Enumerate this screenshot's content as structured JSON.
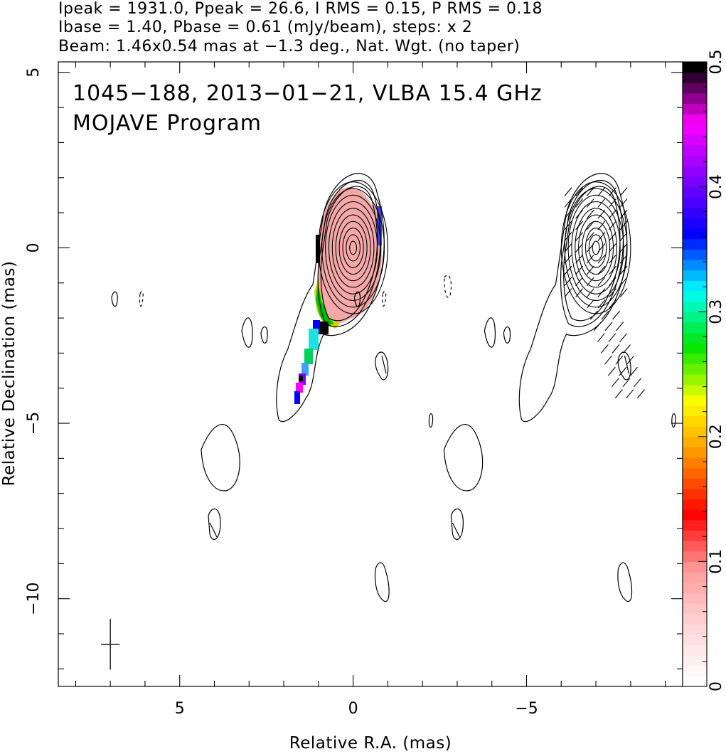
{
  "chart_data": {
    "type": "contour",
    "header_lines": [
      "Ipeak = 1931.0, Ppeak = 26.6, I RMS = 0.15, P RMS = 0.18",
      "Ibase = 1.40, Pbase = 0.61 (mJy/beam), steps: x 2",
      "Beam: 1.46x0.54 mas at −1.3 deg., Nat. Wgt. (no taper)"
    ],
    "annotations": [
      "1045−188, 2013−01−21, VLBA 15.4 GHz",
      "MOJAVE Program"
    ],
    "xlabel": "Relative R.A. (mas)",
    "ylabel": "Relative Declination (mas)",
    "xlim": [
      8.5,
      -9.5
    ],
    "ylim": [
      -12.5,
      5.3
    ],
    "xticks": [
      "5",
      "0",
      "−5"
    ],
    "xtick_values": [
      5,
      0,
      -5
    ],
    "yticks": [
      "5",
      "0",
      "−5",
      "−10"
    ],
    "ytick_values": [
      5,
      0,
      -5,
      -10
    ],
    "colorbar": {
      "range": [
        0,
        0.5
      ],
      "ticks": [
        "0",
        "0.1",
        "0.2",
        "0.3",
        "0.4",
        "0.5"
      ],
      "tick_values": [
        0,
        0.1,
        0.2,
        0.3,
        0.4,
        0.5
      ],
      "colors": [
        "#ffffff",
        "#ffd6d6",
        "#ff9a9a",
        "#ff0000",
        "#ff8c00",
        "#ffff00",
        "#00e600",
        "#00ffff",
        "#0000ff",
        "#8000ff",
        "#ff00ff",
        "#000000"
      ]
    },
    "core": {
      "x": 0.0,
      "y": 0.0
    },
    "peak_ellipse_axes": [
      1.0,
      1.9
    ],
    "beam": {
      "x": 7.0,
      "y": -11.3,
      "major": 1.46,
      "minor": 0.54,
      "pa_deg": -1.3
    },
    "panel_offset_x": -7.0
  }
}
